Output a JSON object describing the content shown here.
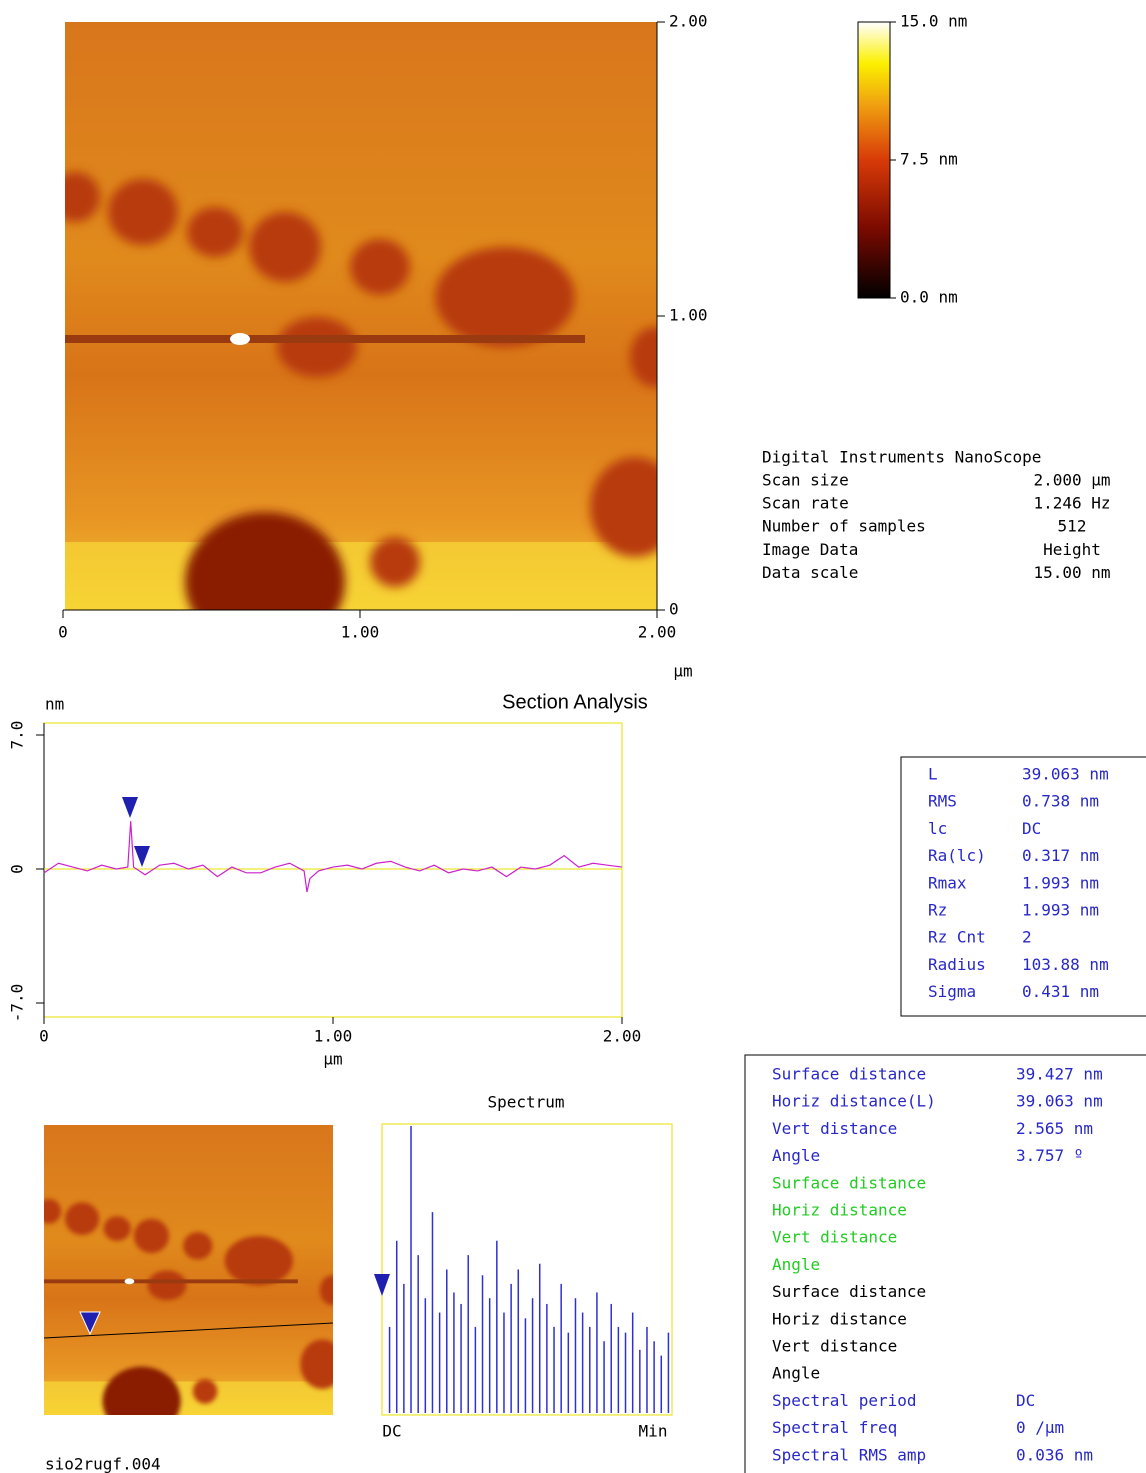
{
  "image": {
    "xlim": [
      0,
      2
    ],
    "ylim": [
      0,
      2
    ],
    "xticks": [
      0,
      {
        "value": 1,
        "label": "1.00"
      },
      {
        "value": 2,
        "label": "2.00"
      }
    ],
    "yticks": [
      0,
      {
        "value": 1,
        "label": "1.00"
      },
      {
        "value": 2,
        "label": "2.00"
      }
    ],
    "unit": "µm"
  },
  "colorbar": {
    "lim": [
      0,
      15
    ],
    "ticks": [
      {
        "value": 15,
        "label": "15.0 nm"
      },
      {
        "value": 7.5,
        "label": "7.5 nm"
      },
      {
        "value": 0,
        "label": "0.0 nm"
      }
    ]
  },
  "info": {
    "header": "Digital Instruments NanoScope",
    "rows": [
      {
        "label": "Scan size",
        "value": "2.000 µm"
      },
      {
        "label": "Scan rate",
        "value": "1.246 Hz"
      },
      {
        "label": "Number of samples",
        "value": "512"
      },
      {
        "label": "Image Data",
        "value": "Height"
      },
      {
        "label": "Data scale",
        "value": "15.00 nm"
      }
    ]
  },
  "section": {
    "title": "Section Analysis",
    "y_unit": "nm",
    "x_unit": "µm",
    "color": "#cc22cc",
    "xlim": [
      0,
      2
    ],
    "ylim": [
      -7,
      7
    ],
    "xticks": [
      0,
      {
        "value": 1,
        "label": "1.00"
      },
      {
        "value": 2,
        "label": "2.00"
      }
    ],
    "yticks": [
      {
        "value": 7,
        "label": "7.0"
      },
      0,
      {
        "value": -7,
        "label": "-7.0"
      }
    ],
    "x": [
      0,
      0.05,
      0.1,
      0.15,
      0.2,
      0.25,
      0.29,
      0.3,
      0.31,
      0.35,
      0.4,
      0.45,
      0.5,
      0.55,
      0.6,
      0.65,
      0.7,
      0.75,
      0.8,
      0.85,
      0.9,
      0.91,
      0.92,
      0.95,
      1.0,
      1.05,
      1.1,
      1.15,
      1.2,
      1.25,
      1.3,
      1.35,
      1.4,
      1.45,
      1.5,
      1.55,
      1.6,
      1.65,
      1.7,
      1.75,
      1.8,
      1.85,
      1.9,
      1.95,
      2.0
    ],
    "values": [
      -0.2,
      0.3,
      0.1,
      -0.1,
      0.2,
      0.0,
      0.1,
      2.5,
      0.1,
      -0.3,
      0.2,
      0.3,
      0.0,
      0.2,
      -0.4,
      0.1,
      -0.2,
      -0.2,
      0.1,
      0.3,
      -0.1,
      -1.2,
      -0.5,
      -0.1,
      0.1,
      0.2,
      0.0,
      0.3,
      0.4,
      0.1,
      -0.1,
      0.2,
      -0.2,
      0.0,
      -0.1,
      0.1,
      -0.4,
      0.1,
      0.0,
      0.2,
      0.7,
      0.1,
      0.3,
      0.2,
      0.1
    ]
  },
  "stats": {
    "color": "#2828c8",
    "rows": [
      {
        "label": "L",
        "value": "39.063 nm"
      },
      {
        "label": "RMS",
        "value": "0.738 nm"
      },
      {
        "label": "lc",
        "value": "DC"
      },
      {
        "label": "Ra(lc)",
        "value": "0.317 nm"
      },
      {
        "label": "Rmax",
        "value": "1.993 nm"
      },
      {
        "label": "Rz",
        "value": "1.993 nm"
      },
      {
        "label": "Rz Cnt",
        "value": "2"
      },
      {
        "label": "Radius",
        "value": "103.88 nm"
      },
      {
        "label": "Sigma",
        "value": "0.431 nm"
      }
    ]
  },
  "spectrum": {
    "title": "Spectrum",
    "color": "#3030d0",
    "ylim": [
      0,
      100
    ],
    "labels": [
      "DC",
      "Min"
    ],
    "values": [
      30,
      60,
      45,
      100,
      55,
      40,
      70,
      35,
      50,
      42,
      38,
      55,
      30,
      48,
      40,
      60,
      35,
      45,
      50,
      33,
      40,
      52,
      38,
      30,
      45,
      28,
      40,
      35,
      30,
      42,
      25,
      38,
      30,
      28,
      35,
      22,
      30,
      25,
      20,
      28
    ]
  },
  "measurements": {
    "groups": [
      {
        "color": "#2828c8",
        "rows": [
          {
            "label": "Surface distance",
            "value": "39.427 nm"
          },
          {
            "label": "Horiz distance(L)",
            "value": "39.063 nm"
          },
          {
            "label": "Vert distance",
            "value": "2.565 nm"
          },
          {
            "label": "Angle",
            "value": "3.757 º"
          }
        ]
      },
      {
        "color": "#22cc22",
        "rows": [
          {
            "label": "Surface distance"
          },
          {
            "label": "Horiz distance"
          },
          {
            "label": "Vert distance"
          },
          {
            "label": "Angle"
          }
        ]
      },
      {
        "color": "#000000",
        "rows": [
          {
            "label": "Surface distance"
          },
          {
            "label": "Horiz distance"
          },
          {
            "label": "Vert distance"
          },
          {
            "label": "Angle"
          }
        ]
      },
      {
        "color": "#2828c8",
        "rows": [
          {
            "label": "Spectral period",
            "value": "DC"
          },
          {
            "label": "Spectral freq",
            "value": "0 /µm"
          },
          {
            "label": "Spectral RMS amp",
            "value": "0.036 nm"
          }
        ]
      }
    ]
  },
  "filename": "sio2rugf.004"
}
